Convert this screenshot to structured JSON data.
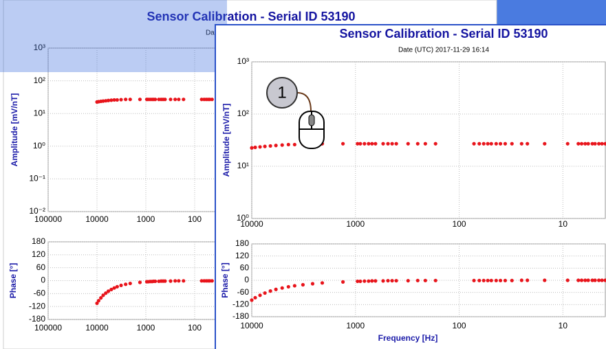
{
  "annotation": "1",
  "chart_data": [
    {
      "type": "scatter",
      "title": "Sensor Calibration - Serial ID 53190",
      "subtitle": "Date (UTC) 2017-11-29 16:14",
      "ylabel": "Amplitude [mV/nT]",
      "xscale": "log",
      "yscale": "log",
      "color": "#e8141b",
      "grid": true,
      "xlim": [
        100000,
        10
      ],
      "ylim": [
        0.01,
        1000
      ],
      "xticks": [
        100000,
        10000,
        1000,
        100
      ],
      "yticks": [
        {
          "value": 1000,
          "label": "10³"
        },
        {
          "value": 100,
          "label": "10²"
        },
        {
          "value": 10,
          "label": "10¹"
        },
        {
          "value": 1,
          "label": "10⁰"
        },
        {
          "value": 0.1,
          "label": "10⁻¹"
        },
        {
          "value": 0.01,
          "label": "10⁻²"
        }
      ],
      "x": [
        10000,
        9260,
        8320,
        7470,
        6610,
        5850,
        5090,
        4430,
        3860,
        3210,
        2590,
        2090,
        1320,
        955,
        898,
        819,
        747,
        692,
        641,
        541,
        486,
        443,
        404,
        311,
        251,
        212,
        169,
        72,
        64,
        58,
        53,
        49,
        44
      ],
      "values": [
        22.5,
        23,
        23.5,
        24,
        24.5,
        25,
        25.5,
        26,
        26,
        26.5,
        27,
        27,
        27,
        27,
        27,
        27,
        27,
        27,
        27,
        27,
        27,
        27,
        27,
        27,
        27,
        27,
        27,
        27,
        27,
        27,
        27,
        27,
        27
      ]
    },
    {
      "type": "scatter",
      "ylabel": "Phase [°]",
      "xscale": "log",
      "yscale": "linear",
      "color": "#e8141b",
      "grid": true,
      "xlim": [
        100000,
        10
      ],
      "ylim": [
        -180,
        180
      ],
      "xticks": [
        100000,
        10000,
        1000,
        100
      ],
      "yticks": [
        180,
        120,
        60,
        0,
        -60,
        -120,
        -180
      ],
      "x": [
        10000,
        9260,
        8320,
        7470,
        6610,
        5850,
        5090,
        4430,
        3860,
        3210,
        2590,
        2090,
        1320,
        955,
        898,
        819,
        747,
        692,
        641,
        541,
        486,
        443,
        404,
        311,
        251,
        212,
        169,
        72,
        64,
        58,
        53,
        49,
        44
      ],
      "values": [
        -105,
        -93,
        -80,
        -68,
        -58,
        -49,
        -41,
        -34,
        -28,
        -22,
        -17,
        -13,
        -8,
        -5,
        -5,
        -4,
        -4,
        -3,
        -3,
        -3,
        -2,
        -2,
        -2,
        -2,
        -1,
        -1,
        -1,
        -1,
        -1,
        -1,
        -1,
        -1,
        -1
      ]
    },
    {
      "type": "scatter",
      "title": "Sensor Calibration - Serial ID 53190",
      "subtitle": "Date (UTC) 2017-11-29 16:14",
      "ylabel": "Amplitude [mV/nT]",
      "xscale": "log",
      "yscale": "log",
      "color": "#e8141b",
      "grid": true,
      "xlim": [
        10000,
        3.9
      ],
      "ylim": [
        1,
        1000
      ],
      "xticks": [
        10000,
        1000,
        100,
        10
      ],
      "yticks": [
        {
          "value": 1000,
          "label": "10³"
        },
        {
          "value": 100,
          "label": "10²"
        },
        {
          "value": 10,
          "label": "10¹"
        },
        {
          "value": 1,
          "label": "10⁰"
        }
      ],
      "x": [
        10000,
        9260,
        8320,
        7470,
        6610,
        5850,
        5090,
        4430,
        3860,
        3210,
        2590,
        2090,
        1320,
        955,
        898,
        819,
        747,
        692,
        641,
        541,
        486,
        443,
        404,
        311,
        251,
        212,
        169,
        72,
        64,
        58,
        53,
        49,
        44,
        40,
        36,
        31,
        25,
        22,
        15,
        9,
        7.1,
        6.6,
        6.1,
        5.7,
        5.2,
        4.9,
        4.5,
        4.2,
        3.9
      ],
      "values": [
        22.5,
        23,
        23.5,
        24,
        24.5,
        25,
        25.5,
        26,
        26,
        26.5,
        27,
        27,
        27,
        27,
        27,
        27,
        27,
        27,
        27,
        27,
        27,
        27,
        27,
        27,
        27,
        27,
        27,
        27,
        27,
        27,
        27,
        27,
        27,
        27,
        27,
        27,
        27,
        27,
        27,
        27,
        27,
        27,
        27,
        27,
        27,
        27,
        27,
        27,
        27
      ]
    },
    {
      "type": "scatter",
      "ylabel": "Phase [°]",
      "xlabel": "Frequency [Hz]",
      "xscale": "log",
      "yscale": "linear",
      "color": "#e8141b",
      "grid": true,
      "xlim": [
        10000,
        3.9
      ],
      "ylim": [
        -180,
        180
      ],
      "xticks": [
        10000,
        1000,
        100,
        10
      ],
      "yticks": [
        180,
        120,
        60,
        0,
        -60,
        -120,
        -180
      ],
      "x": [
        10000,
        9260,
        8320,
        7470,
        6610,
        5850,
        5090,
        4430,
        3860,
        3210,
        2590,
        2090,
        1320,
        955,
        898,
        819,
        747,
        692,
        641,
        541,
        486,
        443,
        404,
        311,
        251,
        212,
        169,
        72,
        64,
        58,
        53,
        49,
        44,
        40,
        36,
        31,
        25,
        22,
        15,
        9,
        7.1,
        6.6,
        6.1,
        5.7,
        5.2,
        4.9,
        4.5,
        4.2,
        3.9
      ],
      "values": [
        -98,
        -86,
        -74,
        -63,
        -53,
        -45,
        -38,
        -32,
        -27,
        -22,
        -17,
        -13,
        -8,
        -5,
        -5,
        -4,
        -4,
        -3,
        -3,
        -3,
        -2,
        -2,
        -2,
        -2,
        -1,
        -1,
        -1,
        -1,
        -1,
        -1,
        -1,
        -1,
        -1,
        -1,
        -1,
        -1,
        0,
        0,
        0,
        0,
        0,
        0,
        0,
        0,
        0,
        0,
        0,
        0,
        0
      ]
    }
  ]
}
